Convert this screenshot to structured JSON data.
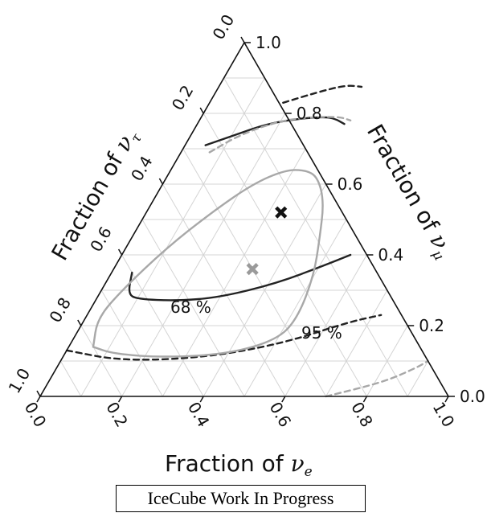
{
  "chart_data": {
    "type": "ternary",
    "axes": {
      "bottom": {
        "label": "Fraction of ",
        "symbol": "ν",
        "subscript": "e",
        "ticks": [
          "0.0",
          "0.2",
          "0.4",
          "0.6",
          "0.8",
          "1.0"
        ]
      },
      "right": {
        "label": "Fraction of ",
        "symbol": "ν",
        "subscript": "μ",
        "ticks": [
          "0.0",
          "0.2",
          "0.4",
          "0.6",
          "0.8",
          "1.0"
        ]
      },
      "left": {
        "label": "Fraction of ",
        "symbol": "ν",
        "subscript": "τ",
        "ticks": [
          "0.0",
          "0.2",
          "0.4",
          "0.6",
          "0.8",
          "1.0"
        ]
      }
    },
    "grid": true,
    "grid_step": 0.1,
    "markers": [
      {
        "name": "black-best-fit",
        "color": "#111111",
        "e": 0.33,
        "mu": 0.52,
        "tau": 0.15
      },
      {
        "name": "grey-best-fit",
        "color": "#9a9a9a",
        "e": 0.34,
        "mu": 0.36,
        "tau": 0.3
      }
    ],
    "contours": [
      {
        "name": "black-68",
        "color": "#222222",
        "style": "solid",
        "label": "68 %",
        "points_e_mu": [
          [
            0.05,
            0.71
          ],
          [
            0.11,
            0.74
          ],
          [
            0.17,
            0.77
          ],
          [
            0.24,
            0.785
          ],
          [
            0.3,
            0.79
          ],
          [
            0.33,
            0.785
          ],
          [
            0.36,
            0.77
          ]
        ],
        "lower_points_e_mu": [
          [
            0.05,
            0.35
          ],
          [
            0.07,
            0.29
          ],
          [
            0.1,
            0.275
          ],
          [
            0.2,
            0.27
          ],
          [
            0.3,
            0.28
          ],
          [
            0.42,
            0.32
          ],
          [
            0.51,
            0.37
          ],
          [
            0.56,
            0.4
          ]
        ]
      },
      {
        "name": "black-95",
        "color": "#222222",
        "style": "dashed",
        "label": "95 %",
        "points_e_mu": [
          [
            0.18,
            0.83
          ],
          [
            0.25,
            0.86
          ],
          [
            0.31,
            0.88
          ],
          [
            0.35,
            0.875
          ]
        ],
        "lower_points_e_mu": [
          [
            0.0,
            0.13
          ],
          [
            0.15,
            0.1
          ],
          [
            0.35,
            0.11
          ],
          [
            0.52,
            0.15
          ],
          [
            0.65,
            0.21
          ],
          [
            0.72,
            0.23
          ]
        ]
      },
      {
        "name": "grey-68",
        "color": "#a8a8a8",
        "style": "solid",
        "label": "",
        "closed_points_e_mu": [
          [
            0.06,
            0.14
          ],
          [
            0.03,
            0.22
          ],
          [
            0.05,
            0.3
          ],
          [
            0.1,
            0.42
          ],
          [
            0.16,
            0.52
          ],
          [
            0.22,
            0.6
          ],
          [
            0.28,
            0.64
          ],
          [
            0.33,
            0.64
          ],
          [
            0.37,
            0.62
          ],
          [
            0.42,
            0.55
          ],
          [
            0.46,
            0.45
          ],
          [
            0.5,
            0.34
          ],
          [
            0.52,
            0.22
          ],
          [
            0.5,
            0.16
          ],
          [
            0.4,
            0.12
          ],
          [
            0.25,
            0.11
          ],
          [
            0.12,
            0.12
          ]
        ]
      },
      {
        "name": "grey-95",
        "color": "#a8a8a8",
        "style": "dashed",
        "label": "",
        "points_e_mu": [
          [
            0.07,
            0.69
          ],
          [
            0.12,
            0.74
          ],
          [
            0.2,
            0.78
          ],
          [
            0.28,
            0.79
          ],
          [
            0.34,
            0.79
          ],
          [
            0.37,
            0.78
          ]
        ],
        "lower_points_e_mu": [
          [
            0.7,
            0.0
          ],
          [
            0.82,
            0.04
          ],
          [
            0.88,
            0.08
          ],
          [
            0.9,
            0.1
          ]
        ]
      }
    ]
  },
  "watermark": "IceCube Work In Progress"
}
